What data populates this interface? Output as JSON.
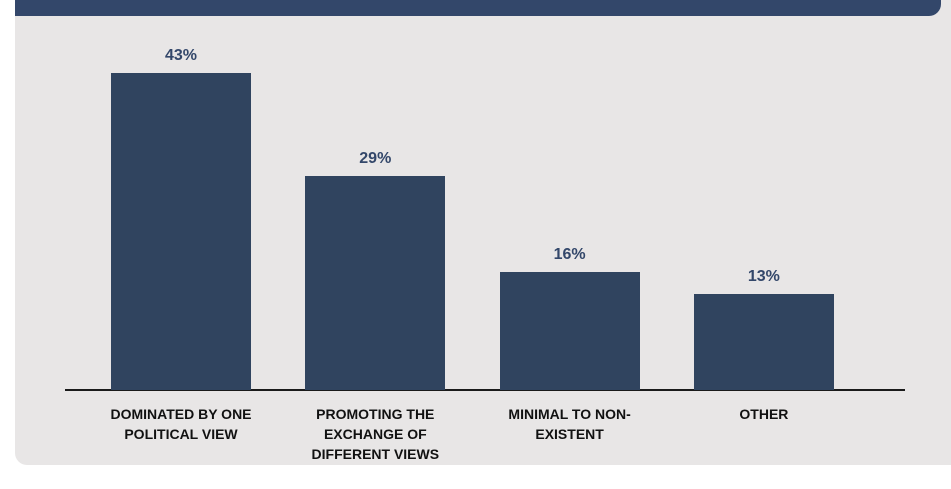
{
  "chart_data": {
    "type": "bar",
    "categories": [
      "DOMINATED BY ONE POLITICAL VIEW",
      "PROMOTING THE EXCHANGE OF DIFFERENT VIEWS",
      "MINIMAL TO NON-EXISTENT",
      "OTHER"
    ],
    "values": [
      43,
      29,
      16,
      13
    ],
    "value_labels": [
      "43%",
      "29%",
      "16%",
      "13%"
    ],
    "color": "#30445f"
  }
}
